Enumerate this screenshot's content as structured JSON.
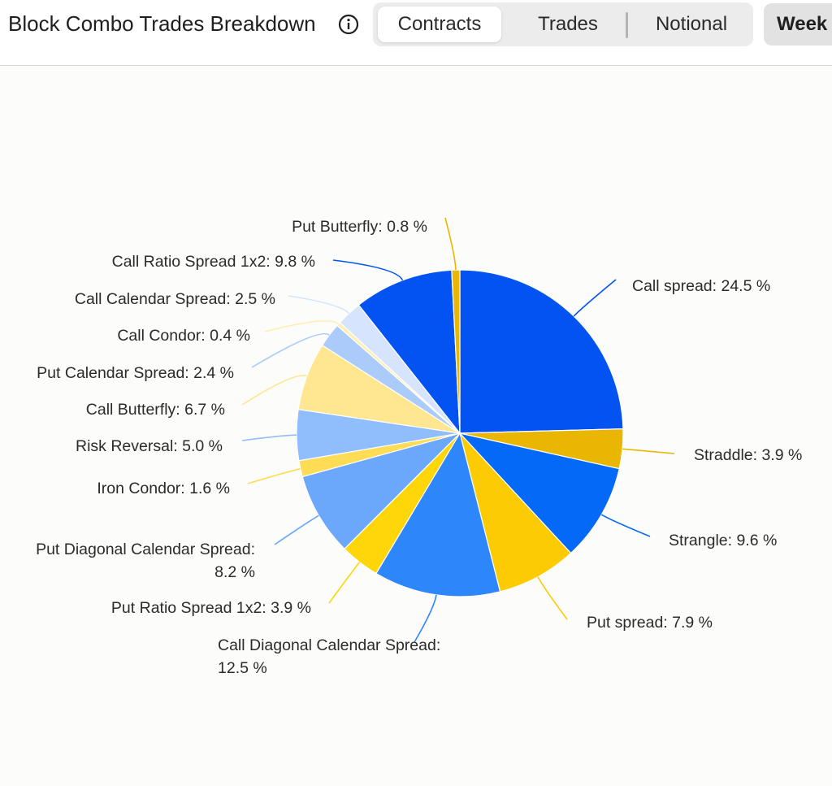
{
  "header": {
    "title": "Block Combo Trades Breakdown",
    "tabs": [
      {
        "label": "Contracts",
        "active": true
      },
      {
        "label": "Trades",
        "active": false
      },
      {
        "label": "Notional",
        "active": false
      }
    ],
    "period_button": "Week",
    "info_icon": "info-icon"
  },
  "chart_data": {
    "type": "pie",
    "unit": "%",
    "slices": [
      {
        "label": "Call spread",
        "value": 24.5,
        "color": "#0352F2",
        "text": "Call spread: 24.5 %"
      },
      {
        "label": "Straddle",
        "value": 3.9,
        "color": "#E9B703",
        "text": "Straddle: 3.9 %"
      },
      {
        "label": "Strangle",
        "value": 9.6,
        "color": "#0569F8",
        "text": "Strangle: 9.6 %"
      },
      {
        "label": "Put spread",
        "value": 7.9,
        "color": "#FDCB04",
        "text": "Put spread: 7.9 %"
      },
      {
        "label": "Call Diagonal Calendar Spread",
        "value": 12.5,
        "color": "#2E86FB",
        "text": "Call Diagonal Calendar Spread: 12.5 %"
      },
      {
        "label": "Put Ratio Spread 1x2",
        "value": 3.9,
        "color": "#FFD60A",
        "text": "Put Ratio Spread 1x2: 3.9 %"
      },
      {
        "label": "Put Diagonal Calendar Spread",
        "value": 8.2,
        "color": "#6BA8FB",
        "text": "Put Diagonal Calendar Spread: 8.2 %"
      },
      {
        "label": "Iron Condor",
        "value": 1.6,
        "color": "#FFDC55",
        "text": "Iron Condor: 1.6 %"
      },
      {
        "label": "Risk Reversal",
        "value": 5.0,
        "color": "#90BDFC",
        "text": "Risk Reversal: 5.0 %"
      },
      {
        "label": "Call Butterfly",
        "value": 6.7,
        "color": "#FFE791",
        "text": "Call Butterfly: 6.7 %"
      },
      {
        "label": "Put Calendar Spread",
        "value": 2.4,
        "color": "#ABCCFB",
        "text": "Put Calendar Spread: 2.4 %"
      },
      {
        "label": "Call Condor",
        "value": 0.4,
        "color": "#FFEFB3",
        "text": "Call Condor: 0.4 %"
      },
      {
        "label": "Call Calendar Spread",
        "value": 2.5,
        "color": "#D6E5FD",
        "text": "Call Calendar Spread: 2.5 %"
      },
      {
        "label": "Call Ratio Spread 1x2",
        "value": 9.8,
        "color": "#0352F2",
        "text": "Call Ratio Spread 1x2: 9.8 %"
      },
      {
        "label": "Put Butterfly",
        "value": 0.8,
        "color": "#E9B703",
        "text": "Put Butterfly: 0.8 %"
      }
    ]
  }
}
